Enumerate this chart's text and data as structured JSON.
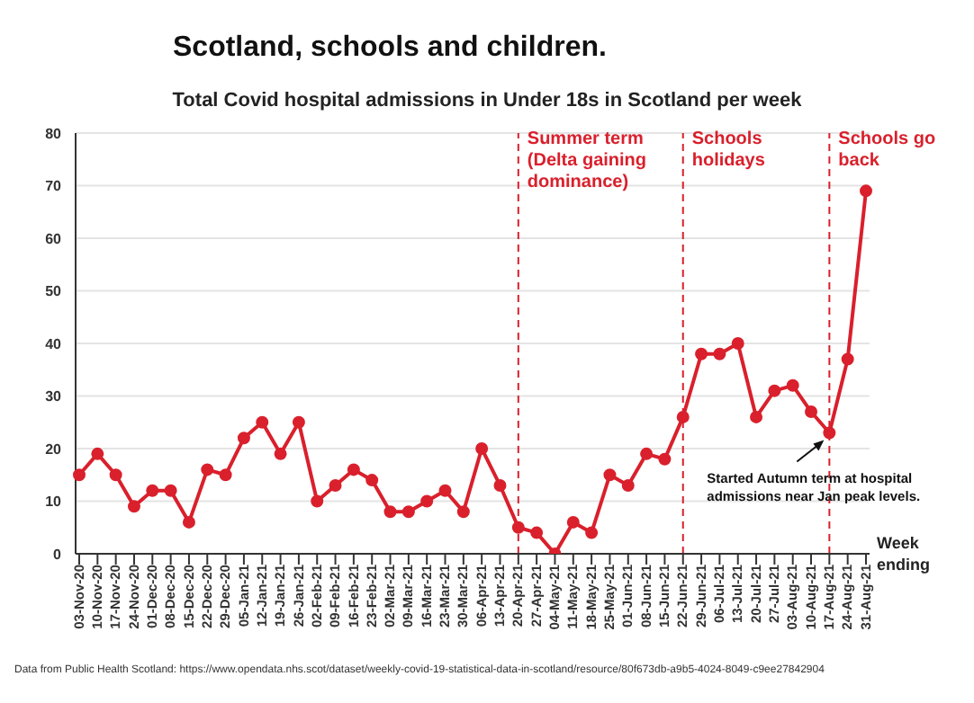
{
  "chart_data": {
    "type": "line",
    "title": "Scotland, schools and children.",
    "subtitle": "Total Covid hospital admissions in Under 18s in Scotland per week",
    "xlabel": "Week ending",
    "categories": [
      "03-Nov-20",
      "10-Nov-20",
      "17-Nov-20",
      "24-Nov-20",
      "01-Dec-20",
      "08-Dec-20",
      "15-Dec-20",
      "22-Dec-20",
      "29-Dec-20",
      "05-Jan-21",
      "12-Jan-21",
      "19-Jan-21",
      "26-Jan-21",
      "02-Feb-21",
      "09-Feb-21",
      "16-Feb-21",
      "23-Feb-21",
      "02-Mar-21",
      "09-Mar-21",
      "16-Mar-21",
      "23-Mar-21",
      "30-Mar-21",
      "06-Apr-21",
      "13-Apr-21",
      "20-Apr-21",
      "27-Apr-21",
      "04-May-21",
      "11-May-21",
      "18-May-21",
      "25-May-21",
      "01-Jun-21",
      "08-Jun-21",
      "15-Jun-21",
      "22-Jun-21",
      "29-Jun-21",
      "06-Jul-21",
      "13-Jul-21",
      "20-Jul-21",
      "27-Jul-21",
      "03-Aug-21",
      "10-Aug-21",
      "17-Aug-21",
      "24-Aug-21",
      "31-Aug-21"
    ],
    "series": [
      {
        "color": "#d9202c",
        "values": [
          15,
          19,
          15,
          9,
          12,
          12,
          6,
          16,
          15,
          22,
          25,
          19,
          25,
          10,
          13,
          16,
          14,
          8,
          8,
          10,
          12,
          8,
          20,
          13,
          5,
          4,
          0,
          6,
          4,
          15,
          13,
          19,
          18,
          26,
          38,
          38,
          40,
          26,
          31,
          32,
          27,
          23,
          37,
          69
        ]
      }
    ],
    "ylim": [
      0,
      80
    ],
    "yticks": [
      0,
      10,
      20,
      30,
      40,
      50,
      60,
      70,
      80
    ],
    "grid": "y",
    "marker": "circle",
    "line_style": "solid",
    "ref_lines": [
      {
        "axis": "x",
        "value": "20-Apr-21",
        "label": "Summer term (Delta gaining dominance)",
        "color": "#d9202c",
        "line_style": "dashed"
      },
      {
        "axis": "x",
        "value": "22-Jun-21",
        "label": "Schools holidays",
        "color": "#d9202c",
        "line_style": "dashed"
      },
      {
        "axis": "x",
        "value": "17-Aug-21",
        "label": "Schools go back",
        "color": "#d9202c",
        "line_style": "dashed"
      }
    ],
    "annotations": [
      {
        "text": "Started Autumn term at hospital admissions near Jan peak levels.",
        "x": "17-Aug-21",
        "y": 23
      },
      "Data from Public Health Scotland: https://www.opendata.nhs.scot/dataset/weekly-covid-19-statistical-data-in-scotland/resource/80f673db-a9b5-4024-8049-c9ee27842904"
    ]
  }
}
